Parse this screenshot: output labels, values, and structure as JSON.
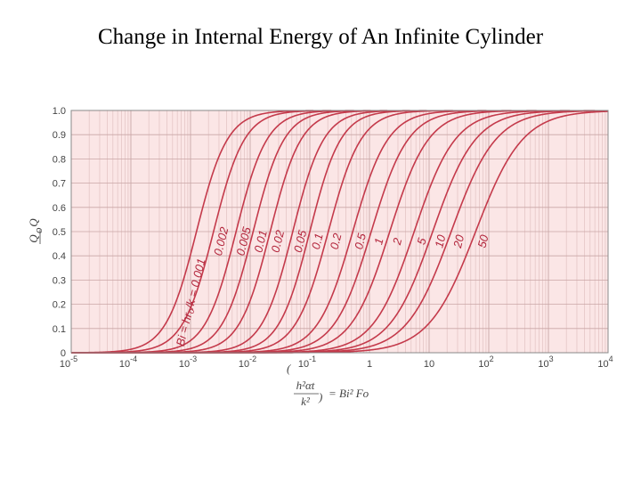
{
  "slide": {
    "title": "Change in Internal Energy of An Infinite Cylinder"
  },
  "chart_data": {
    "type": "line",
    "title": "Change in Internal Energy of An Infinite Cylinder",
    "xscale": "log",
    "xlim": [
      1e-05,
      10000.0
    ],
    "ylim": [
      0,
      1.0
    ],
    "x_ticks": [
      {
        "base": "10",
        "exp": "-5"
      },
      {
        "base": "10",
        "exp": "-4"
      },
      {
        "base": "10",
        "exp": "-3"
      },
      {
        "base": "10",
        "exp": "-2"
      },
      {
        "base": "10",
        "exp": "-1"
      },
      {
        "base": "1",
        "exp": ""
      },
      {
        "base": "10",
        "exp": ""
      },
      {
        "base": "10",
        "exp": "2"
      },
      {
        "base": "10",
        "exp": "3"
      },
      {
        "base": "10",
        "exp": "4"
      }
    ],
    "y_ticks": [
      "0",
      "0.1",
      "0.2",
      "0.3",
      "0.4",
      "0.5",
      "0.6",
      "0.7",
      "0.8",
      "0.9",
      "1.0"
    ],
    "ylabel": {
      "main": "Q",
      "sub": "o",
      "denom": "Q"
    },
    "xlabel": {
      "frac_num": "h²αt",
      "frac_den": "k²",
      "rhs": "= Bi² Fo"
    },
    "grid": true,
    "curve_color": "#c43a4b",
    "plot_bg": "#fbe6e6",
    "series": [
      {
        "label": "Bi = hr₀/k = 0.001",
        "bi": 0.001
      },
      {
        "label": "0.002",
        "bi": 0.002
      },
      {
        "label": "0.005",
        "bi": 0.005
      },
      {
        "label": "0.01",
        "bi": 0.01
      },
      {
        "label": "0.02",
        "bi": 0.02
      },
      {
        "label": "0.05",
        "bi": 0.05
      },
      {
        "label": "0.1",
        "bi": 0.1
      },
      {
        "label": "0.2",
        "bi": 0.2
      },
      {
        "label": "0.5",
        "bi": 0.5
      },
      {
        "label": "1",
        "bi": 1
      },
      {
        "label": "2",
        "bi": 2
      },
      {
        "label": "5",
        "bi": 5
      },
      {
        "label": "10",
        "bi": 10
      },
      {
        "label": "20",
        "bi": 20
      },
      {
        "label": "50",
        "bi": 50
      }
    ]
  }
}
